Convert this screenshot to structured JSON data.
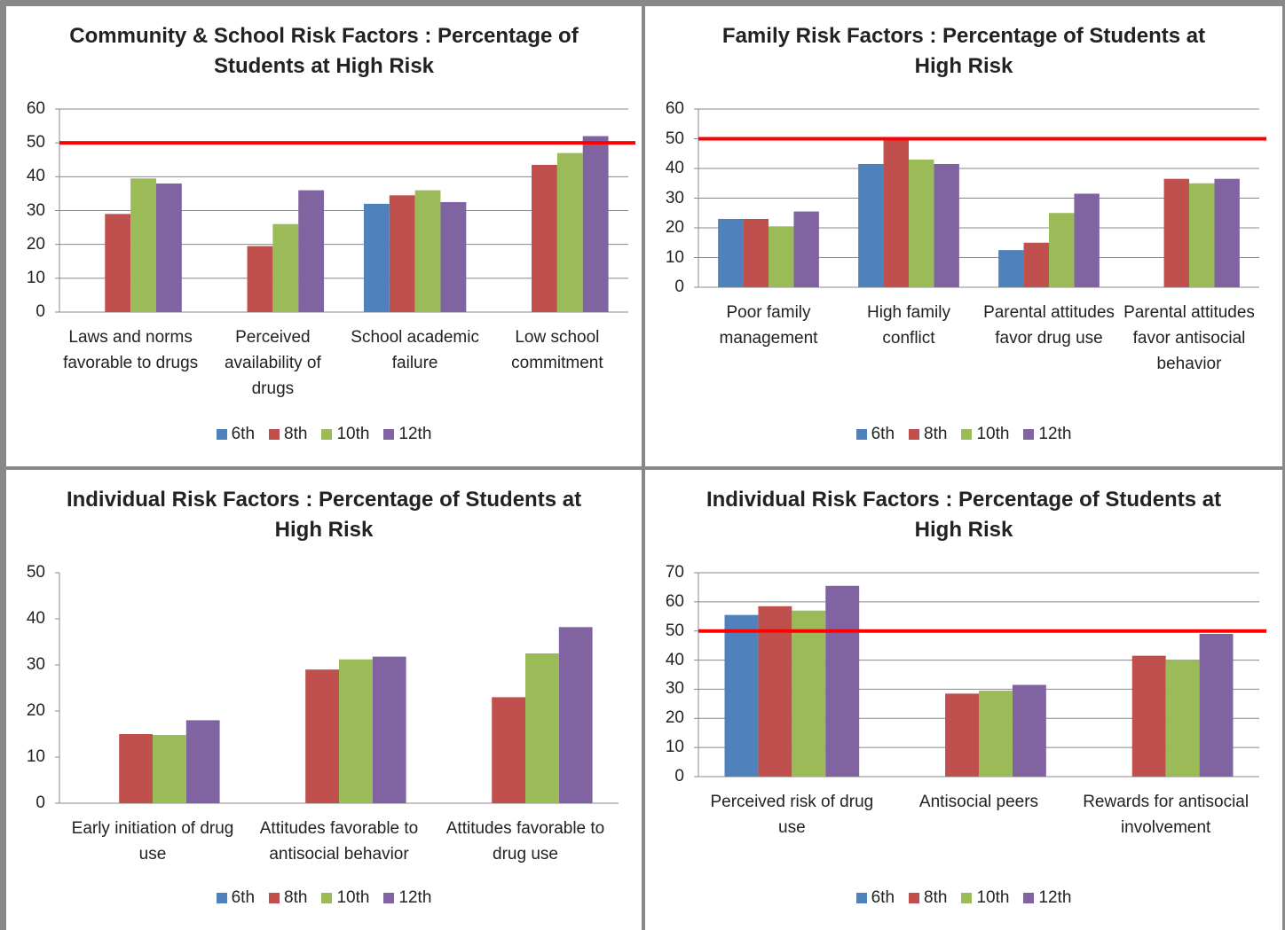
{
  "chart_data": [
    {
      "type": "bar",
      "title": "Community & School Risk Factors :  Percentage of Students at High Risk",
      "categories": [
        "Laws and norms favorable to drugs",
        "Perceived availability of drugs",
        "School academic failure",
        "Low school commitment"
      ],
      "series": [
        {
          "name": "6th",
          "color": "#4f81bd",
          "values": [
            null,
            null,
            32,
            null
          ]
        },
        {
          "name": "8th",
          "color": "#c0504d",
          "values": [
            29,
            19.5,
            34.5,
            43.5
          ]
        },
        {
          "name": "10th",
          "color": "#9bbb59",
          "values": [
            39.5,
            26,
            36,
            47
          ]
        },
        {
          "name": "12th",
          "color": "#8064a2",
          "values": [
            38,
            36,
            32.5,
            52
          ]
        }
      ],
      "ylim": [
        0,
        60
      ],
      "yticks": [
        0,
        10,
        20,
        30,
        40,
        50,
        60
      ],
      "grid": true,
      "reference_line": 50,
      "reference_color": "#ff0000",
      "legend": "bottom"
    },
    {
      "type": "bar",
      "title": "Family Risk Factors : Percentage of Students at High Risk",
      "categories": [
        "Poor family management",
        "High family conflict",
        "Parental attitudes favor drug use",
        "Parental attitudes favor antisocial behavior"
      ],
      "series": [
        {
          "name": "6th",
          "color": "#4f81bd",
          "values": [
            23,
            41.5,
            12.5,
            null
          ]
        },
        {
          "name": "8th",
          "color": "#c0504d",
          "values": [
            23,
            50.5,
            15,
            36.5
          ]
        },
        {
          "name": "10th",
          "color": "#9bbb59",
          "values": [
            20.5,
            43,
            25,
            35
          ]
        },
        {
          "name": "12th",
          "color": "#8064a2",
          "values": [
            25.5,
            41.5,
            31.5,
            36.5
          ]
        }
      ],
      "ylim": [
        0,
        60
      ],
      "yticks": [
        0,
        10,
        20,
        30,
        40,
        50,
        60
      ],
      "grid": true,
      "reference_line": 50,
      "reference_color": "#ff0000",
      "legend": "bottom"
    },
    {
      "type": "bar",
      "title": "Individual  Risk Factors : Percentage of Students at High Risk",
      "categories": [
        "Early initiation of drug use",
        "Attitudes favorable to antisocial behavior",
        "Attitudes favorable to drug use"
      ],
      "series": [
        {
          "name": "6th",
          "color": "#4f81bd",
          "values": [
            null,
            null,
            null
          ]
        },
        {
          "name": "8th",
          "color": "#c0504d",
          "values": [
            15,
            29,
            23
          ]
        },
        {
          "name": "10th",
          "color": "#9bbb59",
          "values": [
            14.8,
            31.2,
            32.5
          ]
        },
        {
          "name": "12th",
          "color": "#8064a2",
          "values": [
            18,
            31.8,
            38.2
          ]
        }
      ],
      "ylim": [
        0,
        50
      ],
      "yticks": [
        0,
        10,
        20,
        30,
        40,
        50
      ],
      "grid": false,
      "legend": "bottom"
    },
    {
      "type": "bar",
      "title": "Individual  Risk Factors : Percentage of Students at High Risk",
      "categories": [
        "Perceived risk of drug use",
        "Antisocial peers",
        "Rewards for antisocial involvement"
      ],
      "series": [
        {
          "name": "6th",
          "color": "#4f81bd",
          "values": [
            55.5,
            null,
            null
          ]
        },
        {
          "name": "8th",
          "color": "#c0504d",
          "values": [
            58.5,
            28.5,
            41.5
          ]
        },
        {
          "name": "10th",
          "color": "#9bbb59",
          "values": [
            57,
            29.5,
            40
          ]
        },
        {
          "name": "12th",
          "color": "#8064a2",
          "values": [
            65.5,
            31.5,
            49
          ]
        }
      ],
      "ylim": [
        0,
        70
      ],
      "yticks": [
        0,
        10,
        20,
        30,
        40,
        50,
        60,
        70
      ],
      "grid": true,
      "reference_line": 50,
      "reference_color": "#ff0000",
      "legend": "bottom"
    }
  ]
}
